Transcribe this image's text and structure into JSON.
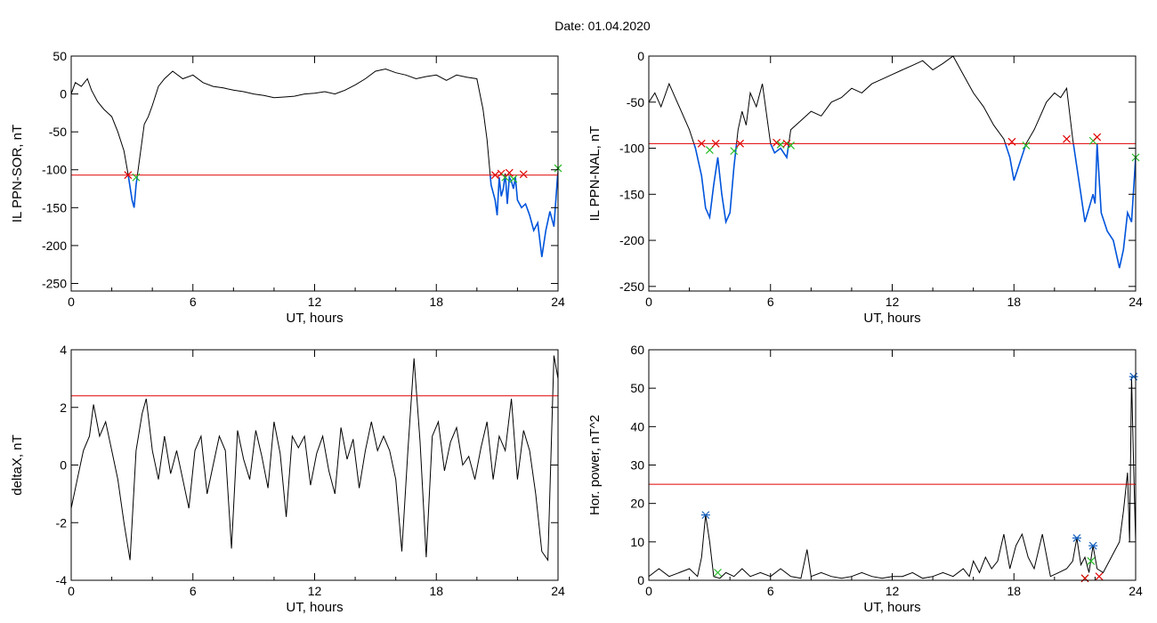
{
  "figure_title": "Date:  01.04.2020",
  "colors": {
    "trace": "#000000",
    "threshold": "#e00000",
    "below_threshold": "#0055dd",
    "marker_red": "#e00000",
    "marker_green": "#22bb22",
    "marker_blue": "#1560bd",
    "axes": "#000000"
  },
  "chart_data": [
    {
      "type": "line",
      "xlabel": "UT, hours",
      "ylabel": "IL PPN-SOR, nT",
      "xlim": [
        0,
        24
      ],
      "ylim": [
        -260,
        50
      ],
      "xticks": [
        0,
        6,
        12,
        18,
        24
      ],
      "yticks": [
        50,
        0,
        -50,
        -100,
        -150,
        -200,
        -250
      ],
      "threshold": -107,
      "fill_below_threshold": true,
      "series": [
        {
          "x": [
            0,
            0.2,
            0.5,
            0.8,
            1.0,
            1.3,
            1.6,
            2.0,
            2.3,
            2.6,
            2.8,
            3.0,
            3.1,
            3.2,
            3.4,
            3.6,
            3.8,
            4.0,
            4.3,
            4.6,
            5.0,
            5.5,
            6.0,
            6.5,
            7.0,
            7.5,
            8.0,
            8.5,
            9.0,
            9.5,
            10.0,
            10.5,
            11.0,
            11.5,
            12.0,
            12.5,
            13.0,
            13.5,
            14.0,
            14.5,
            15.0,
            15.5,
            16.0,
            16.5,
            17.0,
            17.5,
            18.0,
            18.5,
            19.0,
            19.5,
            20.0,
            20.3,
            20.5,
            20.7,
            20.9,
            21.0,
            21.1,
            21.2,
            21.3,
            21.4,
            21.5,
            21.6,
            21.7,
            21.8,
            21.9,
            22.0,
            22.2,
            22.4,
            22.6,
            22.8,
            23.0,
            23.2,
            23.4,
            23.6,
            23.8,
            24.0
          ],
          "y": [
            0,
            15,
            10,
            20,
            5,
            -10,
            -20,
            -30,
            -50,
            -75,
            -105,
            -140,
            -150,
            -120,
            -80,
            -40,
            -30,
            -15,
            10,
            20,
            30,
            20,
            25,
            15,
            10,
            8,
            5,
            3,
            0,
            -2,
            -5,
            -4,
            -3,
            0,
            1,
            3,
            0,
            5,
            12,
            20,
            30,
            33,
            28,
            25,
            20,
            23,
            25,
            18,
            25,
            22,
            20,
            -20,
            -60,
            -120,
            -140,
            -160,
            -110,
            -135,
            -125,
            -105,
            -145,
            -110,
            -115,
            -125,
            -110,
            -140,
            -150,
            -145,
            -160,
            -180,
            -170,
            -215,
            -180,
            -155,
            -175,
            -100
          ]
        }
      ],
      "markers": [
        {
          "x": 2.8,
          "y": -107,
          "color": "red"
        },
        {
          "x": 3.2,
          "y": -110,
          "color": "green"
        },
        {
          "x": 20.9,
          "y": -107,
          "color": "red"
        },
        {
          "x": 21.2,
          "y": -105,
          "color": "red"
        },
        {
          "x": 21.4,
          "y": -110,
          "color": "green"
        },
        {
          "x": 21.6,
          "y": -104,
          "color": "red"
        },
        {
          "x": 21.8,
          "y": -112,
          "color": "green"
        },
        {
          "x": 22.3,
          "y": -106,
          "color": "red"
        },
        {
          "x": 24.0,
          "y": -98,
          "color": "green"
        }
      ]
    },
    {
      "type": "line",
      "xlabel": "UT, hours",
      "ylabel": "IL PPN-NAL, nT",
      "xlim": [
        0,
        24
      ],
      "ylim": [
        -255,
        0
      ],
      "xticks": [
        0,
        6,
        12,
        18,
        24
      ],
      "yticks": [
        0,
        -50,
        -100,
        -150,
        -200,
        -250
      ],
      "threshold": -95,
      "fill_below_threshold": true,
      "series": [
        {
          "x": [
            0,
            0.3,
            0.6,
            1.0,
            1.3,
            1.6,
            2.0,
            2.3,
            2.6,
            2.8,
            3.0,
            3.2,
            3.4,
            3.6,
            3.8,
            4.0,
            4.2,
            4.4,
            4.6,
            4.8,
            5.0,
            5.3,
            5.6,
            6.0,
            6.2,
            6.5,
            6.8,
            7.0,
            7.5,
            8.0,
            8.5,
            9.0,
            9.5,
            10.0,
            10.5,
            11.0,
            11.5,
            12.0,
            12.5,
            13.0,
            13.5,
            14.0,
            14.5,
            15.0,
            15.5,
            16.0,
            16.5,
            17.0,
            17.5,
            17.8,
            18.0,
            18.3,
            18.6,
            19.0,
            19.3,
            19.6,
            20.0,
            20.3,
            20.6,
            20.9,
            21.1,
            21.3,
            21.5,
            21.7,
            21.9,
            22.0,
            22.1,
            22.3,
            22.6,
            22.9,
            23.2,
            23.4,
            23.6,
            23.8,
            24.0
          ],
          "y": [
            -50,
            -40,
            -55,
            -30,
            -45,
            -60,
            -80,
            -100,
            -130,
            -165,
            -175,
            -140,
            -110,
            -150,
            -180,
            -170,
            -120,
            -80,
            -60,
            -75,
            -40,
            -55,
            -30,
            -95,
            -105,
            -100,
            -110,
            -80,
            -70,
            -60,
            -65,
            -50,
            -45,
            -35,
            -40,
            -30,
            -25,
            -20,
            -15,
            -10,
            -5,
            -15,
            -8,
            0,
            -20,
            -40,
            -55,
            -75,
            -90,
            -110,
            -135,
            -115,
            -95,
            -80,
            -65,
            -50,
            -40,
            -45,
            -35,
            -90,
            -120,
            -150,
            -180,
            -165,
            -150,
            -160,
            -95,
            -170,
            -190,
            -200,
            -230,
            -210,
            -170,
            -180,
            -110
          ]
        }
      ],
      "markers": [
        {
          "x": 2.6,
          "y": -95,
          "color": "red"
        },
        {
          "x": 3.0,
          "y": -102,
          "color": "green"
        },
        {
          "x": 3.3,
          "y": -95,
          "color": "red"
        },
        {
          "x": 4.2,
          "y": -103,
          "color": "green"
        },
        {
          "x": 4.5,
          "y": -95,
          "color": "red"
        },
        {
          "x": 6.3,
          "y": -94,
          "color": "red"
        },
        {
          "x": 6.5,
          "y": -96,
          "color": "green"
        },
        {
          "x": 6.8,
          "y": -95,
          "color": "red"
        },
        {
          "x": 7.0,
          "y": -97,
          "color": "green"
        },
        {
          "x": 17.9,
          "y": -93,
          "color": "red"
        },
        {
          "x": 18.6,
          "y": -97,
          "color": "green"
        },
        {
          "x": 20.6,
          "y": -90,
          "color": "red"
        },
        {
          "x": 21.9,
          "y": -92,
          "color": "green"
        },
        {
          "x": 22.1,
          "y": -88,
          "color": "red"
        },
        {
          "x": 24.0,
          "y": -110,
          "color": "green"
        }
      ]
    },
    {
      "type": "line",
      "xlabel": "UT, hours",
      "ylabel": "deltaX, nT",
      "xlim": [
        0,
        24
      ],
      "ylim": [
        -4,
        4
      ],
      "xticks": [
        0,
        6,
        12,
        18,
        24
      ],
      "yticks": [
        4,
        2,
        0,
        -2,
        -4
      ],
      "threshold": 2.4,
      "fill_below_threshold": false,
      "series": [
        {
          "x": [
            0,
            0.3,
            0.6,
            0.9,
            1.1,
            1.4,
            1.7,
            2.0,
            2.3,
            2.6,
            2.9,
            3.2,
            3.5,
            3.7,
            4.0,
            4.3,
            4.6,
            4.9,
            5.2,
            5.5,
            5.8,
            6.1,
            6.4,
            6.7,
            7.0,
            7.3,
            7.6,
            7.9,
            8.2,
            8.5,
            8.8,
            9.1,
            9.4,
            9.7,
            10.0,
            10.3,
            10.6,
            10.9,
            11.2,
            11.5,
            11.8,
            12.1,
            12.4,
            12.7,
            13.0,
            13.3,
            13.6,
            13.9,
            14.2,
            14.5,
            14.8,
            15.1,
            15.4,
            15.7,
            16.0,
            16.3,
            16.6,
            16.9,
            17.2,
            17.5,
            17.8,
            18.1,
            18.4,
            18.7,
            19.0,
            19.3,
            19.6,
            19.9,
            20.2,
            20.5,
            20.8,
            21.1,
            21.4,
            21.7,
            22.0,
            22.3,
            22.6,
            22.9,
            23.2,
            23.5,
            23.8,
            24.0
          ],
          "y": [
            -1.5,
            -0.5,
            0.5,
            1.0,
            2.1,
            1.0,
            1.5,
            0.5,
            -0.5,
            -2.0,
            -3.3,
            0.5,
            1.8,
            2.3,
            0.5,
            -0.5,
            1.0,
            -0.3,
            0.5,
            -0.5,
            -1.5,
            0.5,
            1.0,
            -1.0,
            0.0,
            1.0,
            0.5,
            -2.9,
            1.2,
            0.2,
            -0.5,
            1.2,
            0.3,
            -0.8,
            1.5,
            0.4,
            -1.8,
            1.0,
            0.6,
            1.0,
            -0.7,
            0.4,
            1.0,
            -0.2,
            -1.0,
            1.3,
            0.2,
            0.9,
            -0.8,
            0.5,
            1.5,
            0.5,
            1.0,
            0.5,
            -0.5,
            -3.0,
            0.5,
            3.7,
            0.8,
            -3.2,
            1.0,
            1.5,
            -0.2,
            0.8,
            1.3,
            0.0,
            0.3,
            -0.5,
            0.6,
            1.5,
            -0.5,
            1.0,
            0.5,
            2.3,
            -0.5,
            1.2,
            0.5,
            -1.0,
            -3.0,
            -3.3,
            3.8,
            3.0
          ]
        }
      ],
      "markers": []
    },
    {
      "type": "line",
      "xlabel": "UT, hours",
      "ylabel": "Hor. power, nT^2",
      "xlim": [
        0,
        24
      ],
      "ylim": [
        0,
        60
      ],
      "xticks": [
        0,
        6,
        12,
        18,
        24
      ],
      "yticks": [
        60,
        50,
        40,
        30,
        20,
        10,
        0
      ],
      "threshold": 25,
      "fill_below_threshold": false,
      "series": [
        {
          "x": [
            0,
            0.5,
            1.0,
            1.5,
            2.0,
            2.4,
            2.6,
            2.8,
            3.0,
            3.2,
            3.5,
            3.8,
            4.2,
            4.6,
            5.0,
            5.5,
            6.0,
            6.5,
            7.0,
            7.5,
            7.8,
            8.0,
            8.5,
            9.0,
            9.5,
            10.0,
            10.5,
            11.0,
            11.5,
            12.0,
            12.5,
            13.0,
            13.5,
            14.0,
            14.5,
            15.0,
            15.5,
            15.8,
            16.0,
            16.3,
            16.6,
            16.9,
            17.2,
            17.5,
            17.8,
            18.1,
            18.4,
            18.7,
            19.0,
            19.4,
            19.8,
            20.2,
            20.6,
            20.9,
            21.1,
            21.3,
            21.5,
            21.7,
            21.9,
            22.1,
            22.4,
            22.7,
            23.0,
            23.2,
            23.4,
            23.6,
            23.7,
            23.8,
            23.9,
            24.0
          ],
          "y": [
            1,
            3,
            1,
            2,
            3,
            1,
            6,
            17,
            10,
            1,
            0.5,
            2,
            1,
            3,
            1,
            2,
            1,
            3,
            1,
            0.5,
            8,
            1,
            2,
            1,
            0.5,
            1,
            2,
            1,
            0.5,
            1,
            1,
            2,
            0.5,
            1,
            2,
            1,
            3,
            1,
            5,
            2,
            6,
            3,
            5,
            12,
            3,
            9,
            12,
            6,
            3,
            12,
            1,
            2,
            3,
            5,
            11,
            4,
            6,
            2,
            9,
            3,
            2,
            5,
            8,
            10,
            18,
            28,
            10,
            53,
            30,
            10
          ]
        }
      ],
      "markers": [
        {
          "x": 2.8,
          "y": 17,
          "color": "blue"
        },
        {
          "x": 3.4,
          "y": 2,
          "color": "green"
        },
        {
          "x": 21.1,
          "y": 11,
          "color": "blue"
        },
        {
          "x": 21.5,
          "y": 0.5,
          "color": "green"
        },
        {
          "x": 21.5,
          "y": 0.5,
          "color": "red"
        },
        {
          "x": 21.8,
          "y": 5,
          "color": "green"
        },
        {
          "x": 21.9,
          "y": 9,
          "color": "blue"
        },
        {
          "x": 22.2,
          "y": 1,
          "color": "red"
        },
        {
          "x": 23.9,
          "y": 53,
          "color": "blue"
        }
      ]
    }
  ]
}
